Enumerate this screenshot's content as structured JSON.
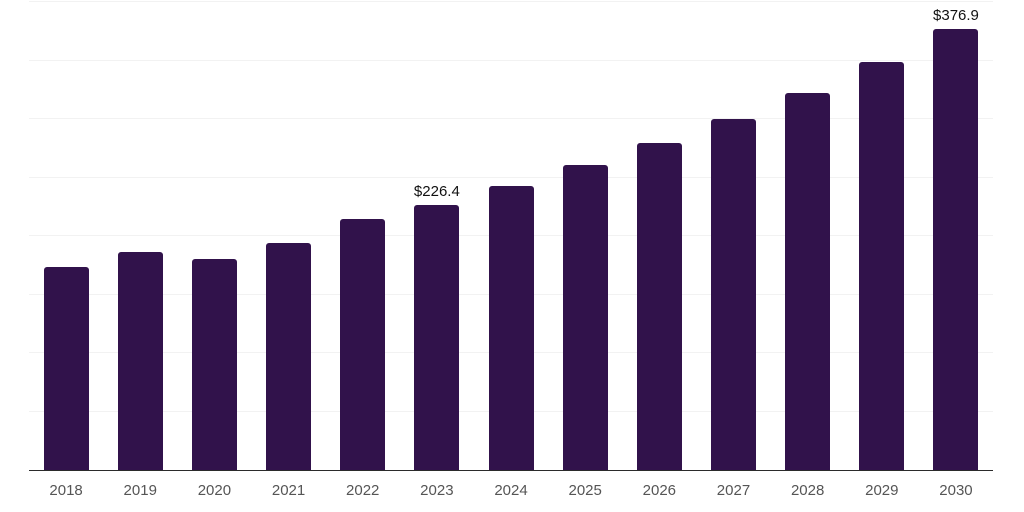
{
  "chart": {
    "background_color": "#ffffff",
    "bar_color": "#31124B",
    "gridline_color": "#f2f2f2",
    "axis_line_color": "#2b2b2b",
    "x_label_color": "#555555",
    "value_label_color": "#111111"
  },
  "chart_data": {
    "type": "bar",
    "title": "",
    "xlabel": "",
    "ylabel": "",
    "categories": [
      "2018",
      "2019",
      "2020",
      "2021",
      "2022",
      "2023",
      "2024",
      "2025",
      "2026",
      "2027",
      "2028",
      "2029",
      "2030"
    ],
    "values": [
      173.2,
      186.0,
      180.3,
      194.3,
      214.5,
      226.4,
      242.5,
      261.0,
      279.5,
      300.0,
      322.1,
      348.8,
      376.9
    ],
    "data_labels": {
      "2023": "$226.4",
      "2030": "$376.9"
    },
    "ylim": [
      0,
      400
    ],
    "gridline_step": 50,
    "grid": true,
    "legend": false,
    "y_axis_labels_visible": false
  }
}
